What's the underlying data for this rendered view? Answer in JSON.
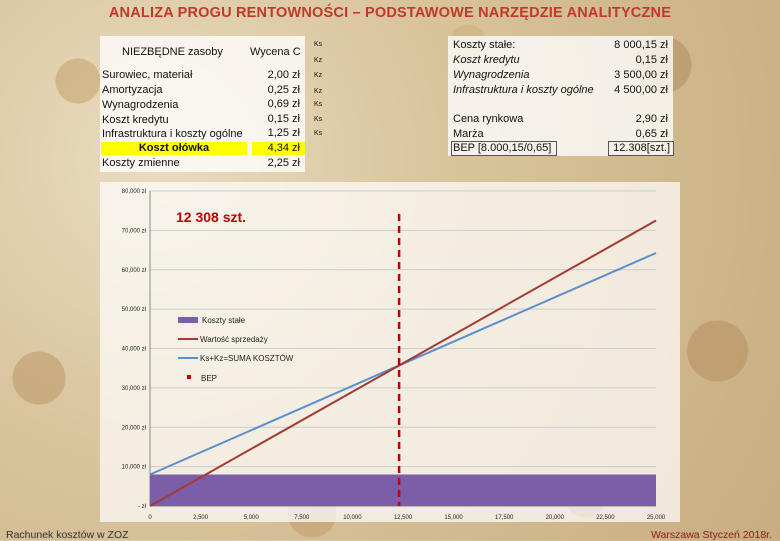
{
  "title": "ANALIZA PROGU RENTOWNOŚCI – PODSTAWOWE NARZĘDZIE ANALITYCZNE",
  "left_table": {
    "header_name": "NIEZBĘDNE zasoby",
    "header_value": "Wycena C",
    "top_code": "Ks",
    "rows": [
      {
        "name": "Surowiec, materiał",
        "value": "2,00 zł",
        "code": "Kz"
      },
      {
        "name": "Amortyzacja",
        "value": "0,25 zł",
        "code": "Kz"
      },
      {
        "name": "Wynagrodzenia",
        "value": "0,69 zł",
        "code": "Kz"
      },
      {
        "name": "Koszt kredytu",
        "value": "0,15 zł",
        "code": "Ks"
      },
      {
        "name": "Infrastruktura i koszty ogólne",
        "value": "1,25 zł",
        "code": "Ks"
      }
    ],
    "total_label": "Koszt ołówka",
    "total_value": "4,34 zł",
    "variable_label": "Koszty zmienne",
    "variable_value": "2,25 zł",
    "extra_code": "Ks"
  },
  "right_table": {
    "fixed_header": "Koszty stałe:",
    "fixed_header_value": "8 000,15 zł",
    "fixed_rows": [
      {
        "name": "Koszt kredytu",
        "value": "0,15 zł"
      },
      {
        "name": "Wynagrodzenia",
        "value": "3 500,00 zł"
      },
      {
        "name": "Infrastruktura i koszty ogólne",
        "value": "4 500,00 zł"
      }
    ],
    "market_rows": [
      {
        "name": "Cena rynkowa",
        "value": "2,90 zł"
      },
      {
        "name": "Marża",
        "value": "0,65 zł"
      },
      {
        "name": "BEP [8.000,15/0,65]",
        "value": "12.308[szt.]"
      }
    ]
  },
  "chart_data": {
    "type": "line",
    "bep_label": "12 308 szt.",
    "bep_x": 12308,
    "x_ticks": [
      "0",
      "2,500",
      "5,000",
      "7,500",
      "10,000",
      "12,500",
      "15,000",
      "17,500",
      "20,000",
      "22,500",
      "25,000"
    ],
    "xlim": [
      0,
      25000
    ],
    "y_ticks": [
      "- zł",
      "10,000 zł",
      "20,000 zł",
      "30,000 zł",
      "40,000 zł",
      "50,000 zł",
      "60,000 zł",
      "70,000 zł",
      "80,000 zł"
    ],
    "ylim": [
      0,
      80000
    ],
    "series": [
      {
        "name": "Koszty stałe",
        "kind": "bar",
        "color": "#7b5ea7",
        "value": 8000.15
      },
      {
        "name": "Wartość sprzedaży",
        "kind": "line",
        "color": "#a33a35",
        "slope": 2.9,
        "intercept": 0
      },
      {
        "name": "Ks+Kz=SUMA KOSZTÓW",
        "kind": "line",
        "color": "#5b8fd0",
        "slope": 2.25,
        "intercept": 8000.15
      },
      {
        "name": "BEP",
        "kind": "marker",
        "color": "#c00000"
      }
    ]
  },
  "footer": {
    "left": "Rachunek kosztów w ZOZ",
    "right": "Warszawa Styczeń 2018r."
  }
}
